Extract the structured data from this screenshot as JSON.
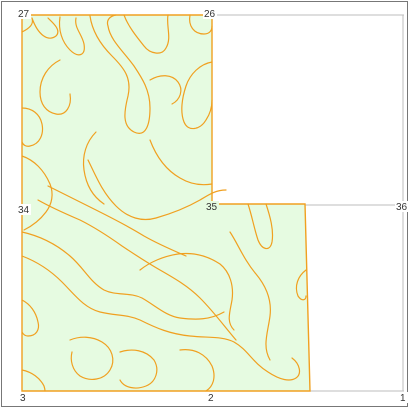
{
  "map": {
    "section_labels": {
      "top_left": "27",
      "top_middle": "26",
      "mid_left": "34",
      "mid_middle": "35",
      "mid_right": "36",
      "bottom_left": "3",
      "bottom_middle": "2",
      "bottom_right": "1"
    },
    "colors": {
      "parcel_fill": "#e6fbe1",
      "parcel_border": "#f0a020",
      "soil_lines": "#f0a020",
      "section_lines": "#bdbdbd",
      "frame_border": "#777777"
    }
  }
}
